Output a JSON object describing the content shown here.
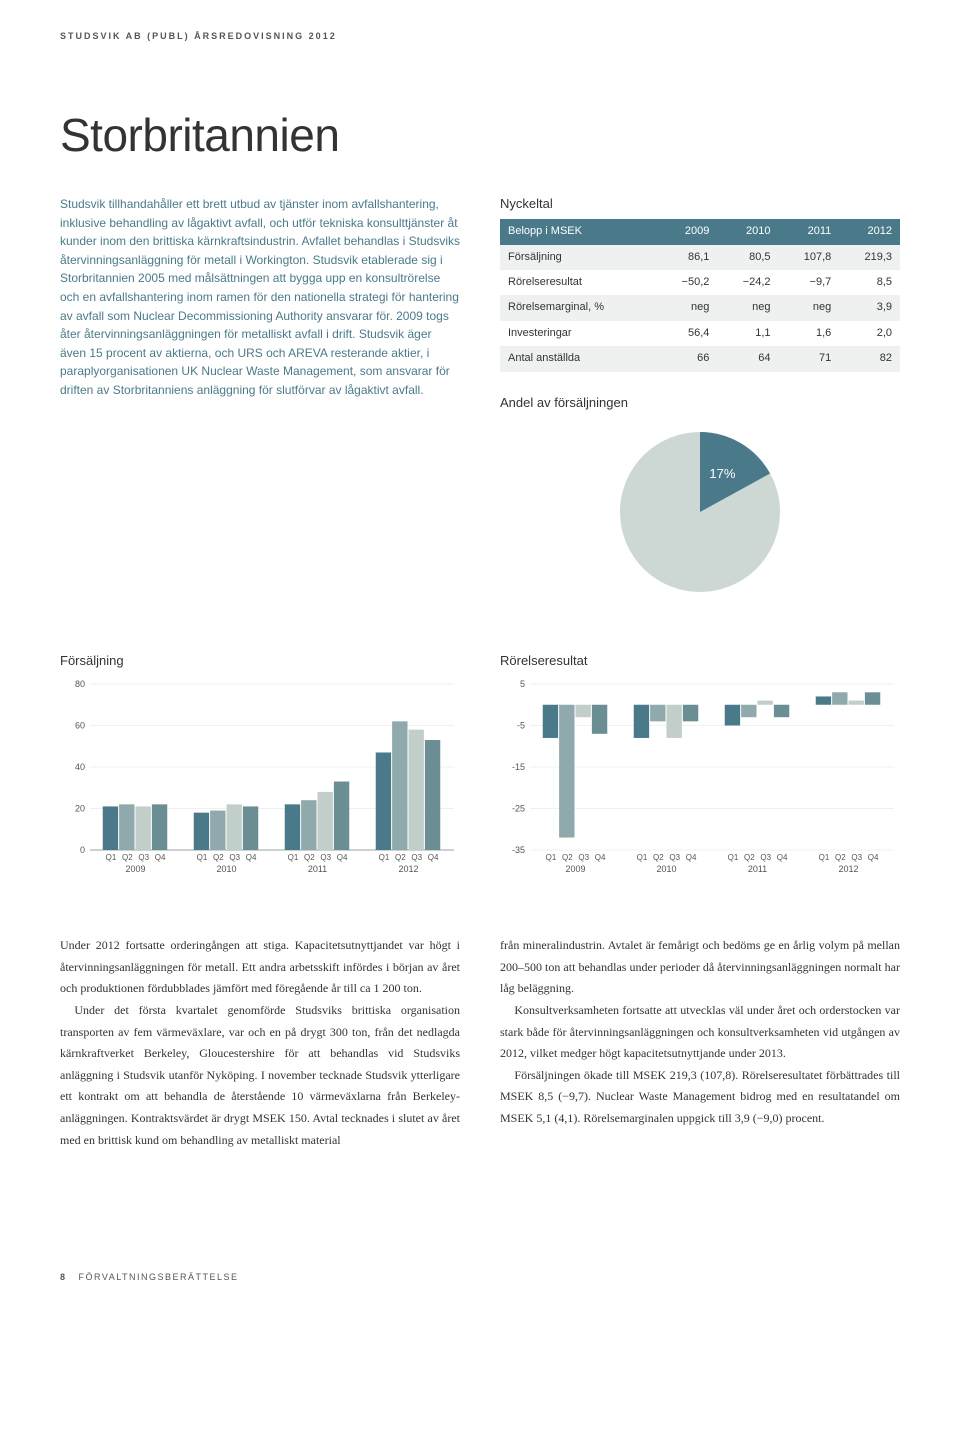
{
  "header": "STUDSVIK AB (PUBL) ÅRSREDOVISNING 2012",
  "section_title": "Storbritannien",
  "intro_paragraph": "Studsvik tillhandahåller ett brett utbud av tjänster inom avfallshantering, inklusive behandling av lågaktivt avfall, och utför tekniska konsulttjänster åt kunder inom den brittiska kärnkraftsindustrin. Avfallet behandlas i Studsviks återvinningsanläggning för metall i Workington. Studsvik etablerade sig i Storbritannien 2005 med målsättningen att bygga upp en konsultrörelse och en avfallshantering inom ramen för den nationella strategi för hantering av avfall som Nuclear Decommis­sioning Authority ansvarar för. 2009 togs åter återvinnings­anläggningen för metalliskt avfall i drift. Studsvik äger även 15 procent av aktierna, och URS och AREVA reste­rande aktier, i paraplyorganisationen UK Nuclear Waste Management, som ansvarar för driften av Storbritanniens anläggning för slutförvar av lågaktivt avfall.",
  "nyckeltal": {
    "title": "Nyckeltal",
    "header_label": "Belopp i MSEK",
    "years": [
      "2009",
      "2010",
      "2011",
      "2012"
    ],
    "rows": [
      {
        "label": "Försäljning",
        "values": [
          "86,1",
          "80,5",
          "107,8",
          "219,3"
        ]
      },
      {
        "label": "Rörelseresultat",
        "values": [
          "−50,2",
          "−24,2",
          "−9,7",
          "8,5"
        ]
      },
      {
        "label": "Rörelsemarginal, %",
        "values": [
          "neg",
          "neg",
          "neg",
          "3,9"
        ]
      },
      {
        "label": "Investeringar",
        "values": [
          "56,4",
          "1,1",
          "1,6",
          "2,0"
        ]
      },
      {
        "label": "Antal anställda",
        "values": [
          "66",
          "64",
          "71",
          "82"
        ]
      }
    ],
    "header_bg": "#4a7a8a",
    "header_fg": "#ffffff",
    "row_odd_bg": "#eef1f0",
    "row_even_bg": "#ffffff"
  },
  "pie": {
    "title": "Andel av försäljningen",
    "pct": 17,
    "label": "17%",
    "slice_color": "#4a7a8a",
    "rest_color": "#cdd7d4",
    "label_color": "#ffffff"
  },
  "bar_chart": {
    "title": "Försäljning",
    "ymin": 0,
    "ymax": 80,
    "ystep": 20,
    "bar_colors": [
      "#4a7a8a",
      "#8fa9ad",
      "#c2ceca",
      "#6b8d94"
    ],
    "axis_color": "#9aa6a3",
    "grid_color": "#e2e2e2",
    "tick_font": 9,
    "group_labels": [
      "2009",
      "2010",
      "2011",
      "2012"
    ],
    "quarter_labels": [
      "Q1",
      "Q2",
      "Q3",
      "Q4"
    ],
    "data": [
      [
        21,
        22,
        21,
        22
      ],
      [
        18,
        19,
        22,
        21
      ],
      [
        22,
        24,
        28,
        33
      ],
      [
        47,
        62,
        58,
        53
      ]
    ]
  },
  "bar_chart2": {
    "title": "Rörelseresultat",
    "ymin": -35,
    "ymax": 5,
    "ystep": 10,
    "bar_colors": [
      "#4a7a8a",
      "#8fa9ad",
      "#c2ceca",
      "#6b8d94"
    ],
    "axis_color": "#9aa6a3",
    "grid_color": "#e2e2e2",
    "tick_font": 9,
    "group_labels": [
      "2009",
      "2010",
      "2011",
      "2012"
    ],
    "quarter_labels": [
      "Q1",
      "Q2",
      "Q3",
      "Q4"
    ],
    "data": [
      [
        -8,
        -32,
        -3,
        -7
      ],
      [
        -8,
        -4,
        -8,
        -4
      ],
      [
        -5,
        -3,
        1,
        -3
      ],
      [
        2,
        3,
        1,
        3
      ]
    ]
  },
  "body_left": [
    "Under 2012 fortsatte orderingången att stiga. Kapacitets­utnyttjandet var högt i återvinningsanläggningen för metall. Ett andra arbetsskift infördes i början av året och produktionen fördubblades jämfört med föregående år till ca 1 200 ton.",
    "Under det första kvartalet genomförde Studsviks brittiska organisation transporten av fem värmeväxlare, var och en på drygt 300 ton, från det nedlagda kärnkraftverket Berkeley, Gloucestershire för att behandlas vid Studsviks anläggning i Studsvik utanför Nyköping. I november tecknade Studsvik ytterligare ett kontrakt om att behandla de återstående 10 värmeväxlarna från Berkeley-anläggningen. Kontrakts­värdet är drygt MSEK 150. Avtal tecknades i slutet av året med en brittisk kund om behandling av metalliskt material"
  ],
  "body_right": [
    "från mineralindustrin. Avtalet är femårigt och bedöms ge en årlig volym på mellan 200–500 ton att behandlas under perioder då återvinningsanläggningen normalt har låg beläggning.",
    "Konsultverksamheten fortsatte att utvecklas väl under året och orderstocken var stark både för återvinningsanläggningen och konsultverksamheten vid utgången av 2012, vilket medger högt kapacitetsutnyttjande under 2013.",
    "Försäljningen ökade till MSEK 219,3 (107,8). Rörelse­resultatet förbättrades till MSEK 8,5 (−9,7). Nuclear Waste Management bidrog med en resultatandel om MSEK 5,1 (4,1). Rörelsemarginalen uppgick till 3,9 (−9,0) procent."
  ],
  "footer": {
    "page": "8",
    "label": "FÖRVALTNINGSBERÄTTELSE"
  }
}
